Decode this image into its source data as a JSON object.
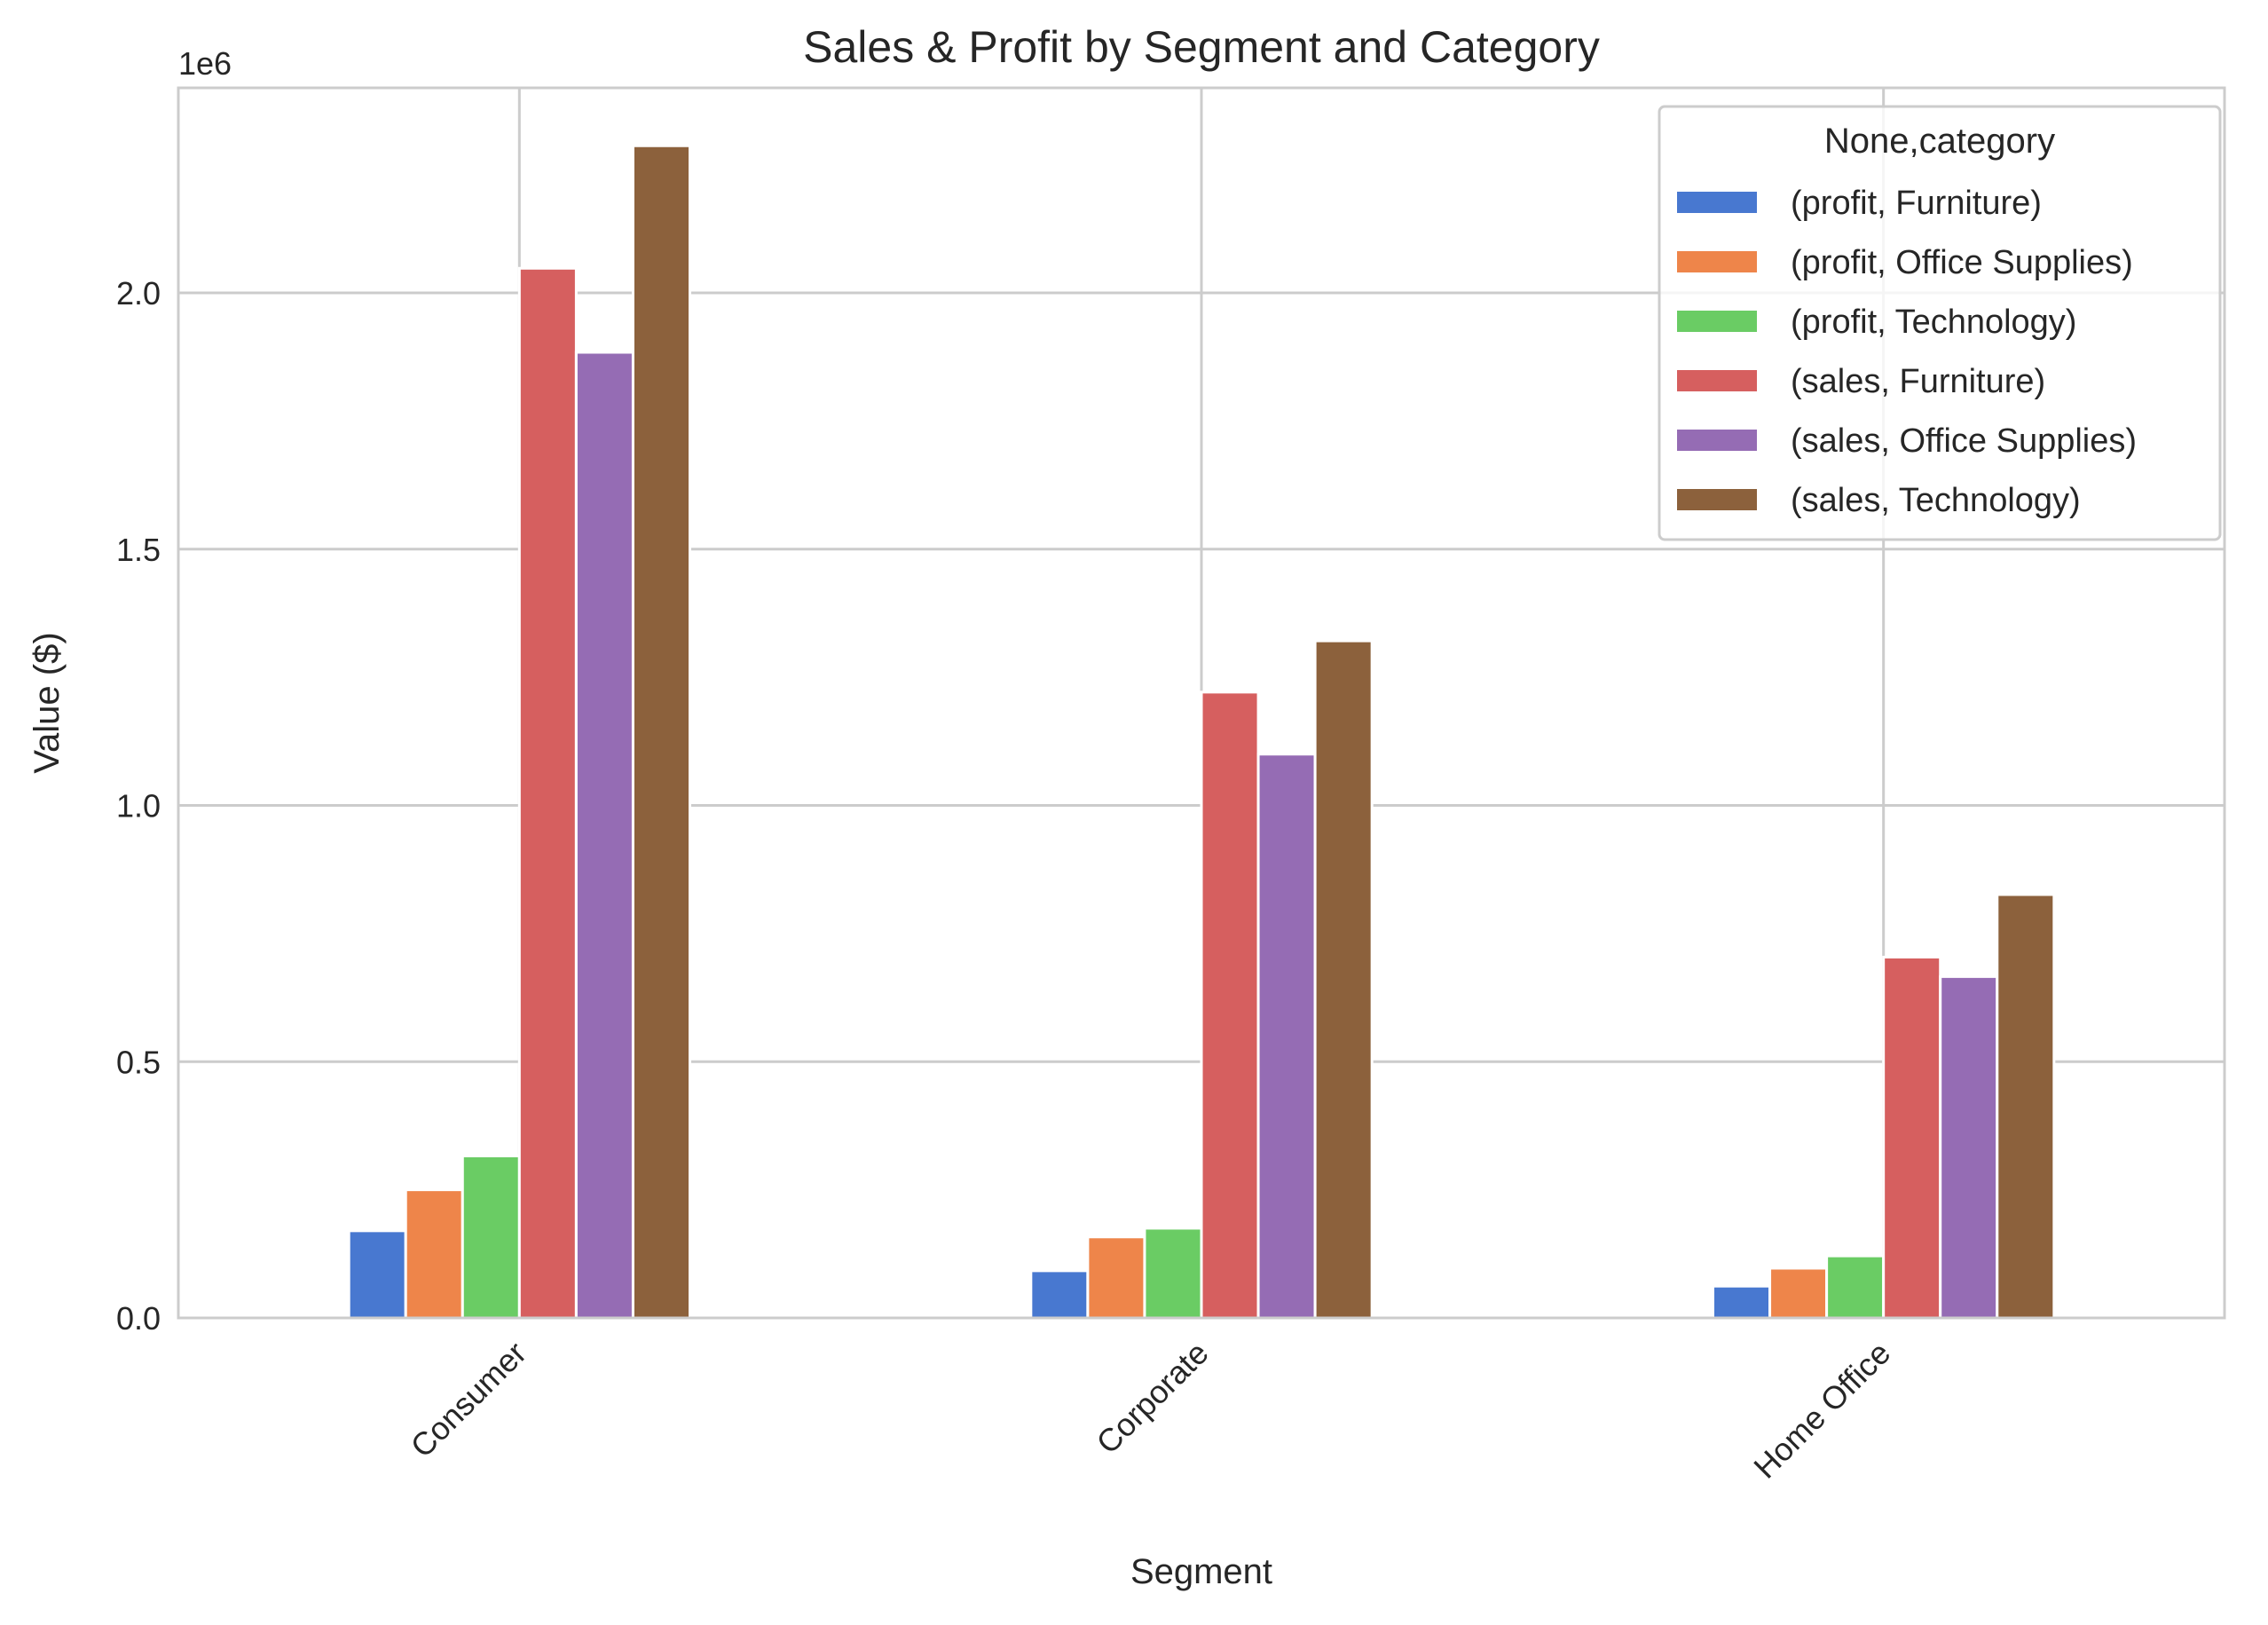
{
  "chart_data": {
    "type": "bar",
    "title": "Sales & Profit by Segment and Category",
    "xlabel": "Segment",
    "ylabel": "Value ($)",
    "y_offset_label": "1e6",
    "categories": [
      "Consumer",
      "Corporate",
      "Home Office"
    ],
    "ylim": [
      0,
      2400000
    ],
    "y_ticks": [
      0,
      500000,
      1000000,
      1500000,
      2000000
    ],
    "y_tick_labels": [
      "0.0",
      "0.5",
      "1.0",
      "1.5",
      "2.0"
    ],
    "x_tick_rotation": "45 degrees",
    "grid": true,
    "legend": {
      "title": "None,category",
      "placement": "top-right"
    },
    "series": [
      {
        "name": "(profit, Furniture)",
        "color": "#4878d0",
        "values": [
          170000,
          92000,
          62000
        ]
      },
      {
        "name": "(profit, Office Supplies)",
        "color": "#ee854a",
        "values": [
          250000,
          158000,
          97000
        ]
      },
      {
        "name": "(profit, Technology)",
        "color": "#6acc64",
        "values": [
          316000,
          175000,
          121000
        ]
      },
      {
        "name": "(sales, Furniture)",
        "color": "#d65f5f",
        "values": [
          2048000,
          1221000,
          704000
        ]
      },
      {
        "name": "(sales, Office Supplies)",
        "color": "#956cb4",
        "values": [
          1884000,
          1100000,
          666000
        ]
      },
      {
        "name": "(sales, Technology)",
        "color": "#8c613c",
        "values": [
          2287000,
          1321000,
          826000
        ]
      }
    ]
  }
}
